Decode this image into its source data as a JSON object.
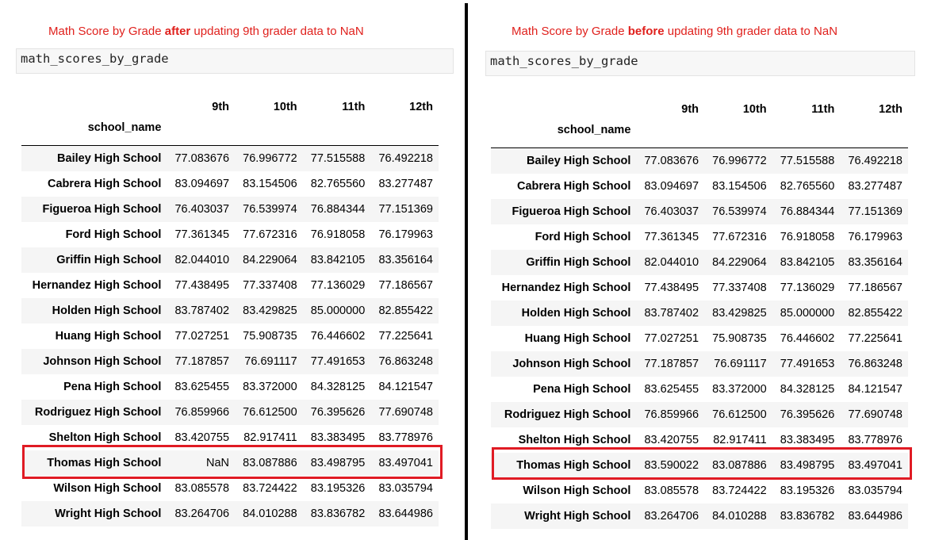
{
  "left": {
    "caption_pre": "Math Score by Grade ",
    "caption_bold": "after",
    "caption_post": " updating 9th grader data to NaN",
    "code": "math_scores_by_grade"
  },
  "right": {
    "caption_pre": "Math Score by Grade ",
    "caption_bold": "before",
    "caption_post": " updating 9th grader data to NaN",
    "code": "math_scores_by_grade"
  },
  "table": {
    "columns": [
      "9th",
      "10th",
      "11th",
      "12th"
    ],
    "index_name": "school_name"
  },
  "rows_after": [
    {
      "school": "Bailey High School",
      "values": [
        "77.083676",
        "76.996772",
        "77.515588",
        "76.492218"
      ]
    },
    {
      "school": "Cabrera High School",
      "values": [
        "83.094697",
        "83.154506",
        "82.765560",
        "83.277487"
      ]
    },
    {
      "school": "Figueroa High School",
      "values": [
        "76.403037",
        "76.539974",
        "76.884344",
        "77.151369"
      ]
    },
    {
      "school": "Ford High School",
      "values": [
        "77.361345",
        "77.672316",
        "76.918058",
        "76.179963"
      ]
    },
    {
      "school": "Griffin High School",
      "values": [
        "82.044010",
        "84.229064",
        "83.842105",
        "83.356164"
      ]
    },
    {
      "school": "Hernandez High School",
      "values": [
        "77.438495",
        "77.337408",
        "77.136029",
        "77.186567"
      ]
    },
    {
      "school": "Holden High School",
      "values": [
        "83.787402",
        "83.429825",
        "85.000000",
        "82.855422"
      ]
    },
    {
      "school": "Huang High School",
      "values": [
        "77.027251",
        "75.908735",
        "76.446602",
        "77.225641"
      ]
    },
    {
      "school": "Johnson High School",
      "values": [
        "77.187857",
        "76.691117",
        "77.491653",
        "76.863248"
      ]
    },
    {
      "school": "Pena High School",
      "values": [
        "83.625455",
        "83.372000",
        "84.328125",
        "84.121547"
      ]
    },
    {
      "school": "Rodriguez High School",
      "values": [
        "76.859966",
        "76.612500",
        "76.395626",
        "77.690748"
      ]
    },
    {
      "school": "Shelton High School",
      "values": [
        "83.420755",
        "82.917411",
        "83.383495",
        "83.778976"
      ]
    },
    {
      "school": "Thomas High School",
      "values": [
        "NaN",
        "83.087886",
        "83.498795",
        "83.497041"
      ]
    },
    {
      "school": "Wilson High School",
      "values": [
        "83.085578",
        "83.724422",
        "83.195326",
        "83.035794"
      ]
    },
    {
      "school": "Wright High School",
      "values": [
        "83.264706",
        "84.010288",
        "83.836782",
        "83.644986"
      ]
    }
  ],
  "rows_before": [
    {
      "school": "Bailey High School",
      "values": [
        "77.083676",
        "76.996772",
        "77.515588",
        "76.492218"
      ]
    },
    {
      "school": "Cabrera High School",
      "values": [
        "83.094697",
        "83.154506",
        "82.765560",
        "83.277487"
      ]
    },
    {
      "school": "Figueroa High School",
      "values": [
        "76.403037",
        "76.539974",
        "76.884344",
        "77.151369"
      ]
    },
    {
      "school": "Ford High School",
      "values": [
        "77.361345",
        "77.672316",
        "76.918058",
        "76.179963"
      ]
    },
    {
      "school": "Griffin High School",
      "values": [
        "82.044010",
        "84.229064",
        "83.842105",
        "83.356164"
      ]
    },
    {
      "school": "Hernandez High School",
      "values": [
        "77.438495",
        "77.337408",
        "77.136029",
        "77.186567"
      ]
    },
    {
      "school": "Holden High School",
      "values": [
        "83.787402",
        "83.429825",
        "85.000000",
        "82.855422"
      ]
    },
    {
      "school": "Huang High School",
      "values": [
        "77.027251",
        "75.908735",
        "76.446602",
        "77.225641"
      ]
    },
    {
      "school": "Johnson High School",
      "values": [
        "77.187857",
        "76.691117",
        "77.491653",
        "76.863248"
      ]
    },
    {
      "school": "Pena High School",
      "values": [
        "83.625455",
        "83.372000",
        "84.328125",
        "84.121547"
      ]
    },
    {
      "school": "Rodriguez High School",
      "values": [
        "76.859966",
        "76.612500",
        "76.395626",
        "77.690748"
      ]
    },
    {
      "school": "Shelton High School",
      "values": [
        "83.420755",
        "82.917411",
        "83.383495",
        "83.778976"
      ]
    },
    {
      "school": "Thomas High School",
      "values": [
        "83.590022",
        "83.087886",
        "83.498795",
        "83.497041"
      ]
    },
    {
      "school": "Wilson High School",
      "values": [
        "83.085578",
        "83.724422",
        "83.195326",
        "83.035794"
      ]
    },
    {
      "school": "Wright High School",
      "values": [
        "83.264706",
        "84.010288",
        "83.836782",
        "83.644986"
      ]
    }
  ],
  "highlight_color": "#e01b24",
  "caption_color": "#e0211d"
}
